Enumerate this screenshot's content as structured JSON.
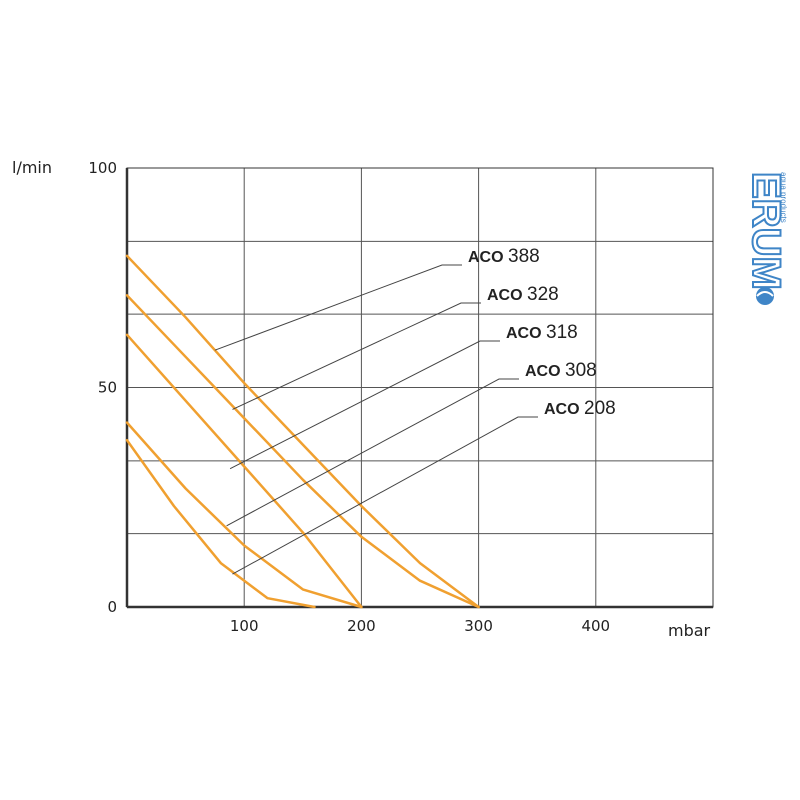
{
  "chart_data": {
    "type": "line",
    "xlabel": "mbar",
    "ylabel": "l/min",
    "xlim": [
      0,
      500
    ],
    "ylim": [
      0,
      100
    ],
    "x_ticks": [
      "100",
      "200",
      "300",
      "400"
    ],
    "y_ticks": [
      "0",
      "50",
      "100"
    ],
    "x_grid": [
      100,
      200,
      300,
      400
    ],
    "y_grid": [
      16.7,
      33.3,
      50,
      66.7,
      83.3
    ],
    "grid": true,
    "line_color": "#f0a030",
    "series": [
      {
        "name": "ACO 388",
        "prefix": "ACO",
        "model": "388",
        "points": [
          [
            0,
            80
          ],
          [
            50,
            66
          ],
          [
            100,
            51
          ],
          [
            150,
            37
          ],
          [
            200,
            23
          ],
          [
            250,
            10
          ],
          [
            300,
            0
          ]
        ],
        "leader_from": [
          75,
          58.5
        ]
      },
      {
        "name": "ACO 328",
        "prefix": "ACO",
        "model": "328",
        "points": [
          [
            0,
            71
          ],
          [
            50,
            57
          ],
          [
            100,
            43
          ],
          [
            150,
            29
          ],
          [
            200,
            16
          ],
          [
            250,
            6
          ],
          [
            300,
            0
          ]
        ],
        "leader_from": [
          90,
          45
        ]
      },
      {
        "name": "ACO 318",
        "prefix": "ACO",
        "model": "318",
        "points": [
          [
            0,
            62
          ],
          [
            50,
            47
          ],
          [
            100,
            32
          ],
          [
            150,
            17
          ],
          [
            200,
            0
          ]
        ],
        "leader_from": [
          88,
          31.5
        ]
      },
      {
        "name": "ACO 308",
        "prefix": "ACO",
        "model": "308",
        "points": [
          [
            0,
            42
          ],
          [
            50,
            27
          ],
          [
            100,
            14
          ],
          [
            150,
            4
          ],
          [
            200,
            0
          ]
        ],
        "leader_from": [
          85,
          18.5
        ]
      },
      {
        "name": "ACO 208",
        "prefix": "ACO",
        "model": "208",
        "points": [
          [
            0,
            38
          ],
          [
            40,
            23
          ],
          [
            80,
            10
          ],
          [
            120,
            2
          ],
          [
            160,
            0
          ]
        ],
        "leader_from": [
          90,
          7.5
        ]
      }
    ]
  },
  "logo": {
    "brand": "ERUM",
    "tagline": "aqua products",
    "color": "#3f85c7"
  }
}
